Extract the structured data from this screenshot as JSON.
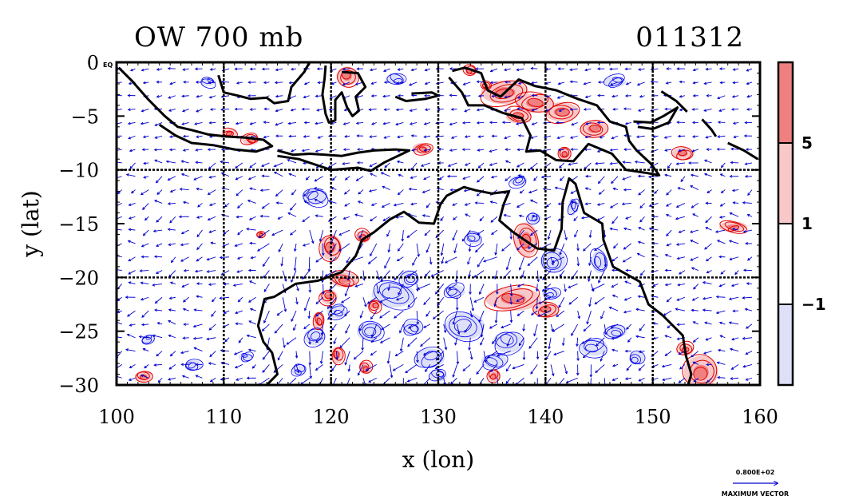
{
  "chart_data": {
    "type": "heatmap",
    "title_left": "OW 700 mb",
    "title_right": "011312",
    "xlabel": "x (lon)",
    "ylabel": "y (lat)",
    "xlim": [
      100,
      160
    ],
    "ylim": [
      -30,
      0
    ],
    "x_ticks": [
      100,
      110,
      120,
      130,
      140,
      150,
      160
    ],
    "x_tick_labels": [
      "100",
      "110",
      "120",
      "130",
      "140",
      "150",
      "160"
    ],
    "y_ticks": [
      0,
      -5,
      -10,
      -15,
      -20,
      -25,
      -30
    ],
    "y_tick_labels": [
      "0",
      "−5",
      "−10",
      "−15",
      "−20",
      "−25",
      "−30"
    ],
    "y_zero_suffix": "EQ",
    "grid": true,
    "grid_lines_x": [
      110,
      120,
      130,
      140,
      150
    ],
    "grid_lines_y": [
      -10,
      -20
    ],
    "colorbar": {
      "levels": [
        -1,
        1,
        5
      ],
      "level_labels": [
        "−1",
        "1",
        "5"
      ],
      "colors": [
        "#dde0f6",
        "#ffffff",
        "#f8c8c8",
        "#f08080"
      ]
    },
    "contour_colors": {
      "positive": "#e00000",
      "negative": "#0000ee"
    },
    "vector_color": "#0000cc",
    "coast_color": "#000000",
    "vector_key": {
      "value_label": "0.800E+02",
      "caption": "MAXIMUM VECTOR"
    },
    "coastlines": [
      {
        "name": "sumatra-java",
        "points": [
          [
            100.2,
            -0.5
          ],
          [
            101.5,
            -1.8
          ],
          [
            103,
            -3.5
          ],
          [
            104.5,
            -5
          ],
          [
            105.7,
            -6
          ],
          [
            107,
            -6.3
          ],
          [
            108.5,
            -6.7
          ],
          [
            110.2,
            -6.9
          ],
          [
            112,
            -7
          ],
          [
            113.7,
            -7.2
          ],
          [
            114.5,
            -7.8
          ],
          [
            113,
            -8.3
          ],
          [
            111,
            -8.1
          ],
          [
            109,
            -7.7
          ],
          [
            107,
            -7.5
          ],
          [
            105.5,
            -6.8
          ],
          [
            104,
            -5.8
          ]
        ]
      },
      {
        "name": "lesser-sunda",
        "points": [
          [
            115,
            -8.2
          ],
          [
            116.5,
            -8.6
          ],
          [
            118,
            -8.5
          ],
          [
            119.5,
            -8.6
          ],
          [
            121,
            -8.7
          ],
          [
            122.5,
            -8.4
          ],
          [
            124,
            -8.2
          ],
          [
            126,
            -8.1
          ],
          [
            127.3,
            -8.2
          ],
          [
            125,
            -9.3
          ],
          [
            123.7,
            -10.1
          ],
          [
            122.5,
            -9.8
          ],
          [
            120,
            -10
          ],
          [
            117,
            -9
          ],
          [
            115,
            -8.7
          ]
        ]
      },
      {
        "name": "borneo",
        "points": [
          [
            109.5,
            -1.2
          ],
          [
            110,
            -2.8
          ],
          [
            111.3,
            -3.1
          ],
          [
            112.5,
            -3.4
          ],
          [
            114,
            -3.3
          ],
          [
            114.7,
            -3.8
          ],
          [
            116,
            -3.6
          ],
          [
            116.3,
            -2.3
          ],
          [
            117.5,
            -0.9
          ],
          [
            118,
            0
          ]
        ]
      },
      {
        "name": "sulawesi",
        "points": [
          [
            119.5,
            -0.3
          ],
          [
            119.4,
            -1.5
          ],
          [
            119.2,
            -3
          ],
          [
            119.5,
            -4.8
          ],
          [
            119.8,
            -5.6
          ],
          [
            120.4,
            -5.4
          ],
          [
            120.4,
            -3.5
          ],
          [
            121,
            -2.8
          ],
          [
            121.5,
            -4.2
          ],
          [
            122,
            -5
          ],
          [
            122.6,
            -4.5
          ],
          [
            122.3,
            -3.2
          ],
          [
            123.2,
            -2.3
          ],
          [
            122.5,
            -1
          ],
          [
            121,
            -0.9
          ]
        ]
      },
      {
        "name": "small-islands-east",
        "points": [
          [
            126,
            -3.2
          ],
          [
            127,
            -3.6
          ],
          [
            128.8,
            -3.4
          ],
          [
            130,
            -3.1
          ],
          [
            129.4,
            -2.8
          ],
          [
            127.5,
            -2.9
          ]
        ]
      },
      {
        "name": "new-guinea",
        "points": [
          [
            131.3,
            -0.8
          ],
          [
            132.5,
            -0.5
          ],
          [
            134,
            -1
          ],
          [
            134.6,
            -2.6
          ],
          [
            135.8,
            -3.2
          ],
          [
            137.5,
            -1.6
          ],
          [
            139,
            -2.2
          ],
          [
            141,
            -2.6
          ],
          [
            143,
            -3.4
          ],
          [
            144.8,
            -4
          ],
          [
            146,
            -5.5
          ],
          [
            147.5,
            -6
          ],
          [
            147.8,
            -7.3
          ],
          [
            148.5,
            -8.2
          ],
          [
            149.8,
            -9.4
          ],
          [
            150.6,
            -10.5
          ],
          [
            149.5,
            -10.3
          ],
          [
            147.5,
            -10
          ],
          [
            146.2,
            -8.5
          ],
          [
            144,
            -7.6
          ],
          [
            142.6,
            -9.2
          ],
          [
            141,
            -9.1
          ],
          [
            139.5,
            -8.2
          ],
          [
            138.2,
            -8.3
          ],
          [
            138.6,
            -6.8
          ],
          [
            137.8,
            -5.2
          ],
          [
            136,
            -4.7
          ],
          [
            134.3,
            -4
          ],
          [
            132.8,
            -4
          ],
          [
            132.2,
            -2.8
          ],
          [
            131,
            -1.4
          ]
        ]
      },
      {
        "name": "new-britain",
        "points": [
          [
            148.2,
            -5.5
          ],
          [
            149.8,
            -5.6
          ],
          [
            151,
            -5
          ],
          [
            152.3,
            -4.2
          ],
          [
            151.5,
            -5.6
          ],
          [
            150,
            -6.2
          ],
          [
            148.6,
            -6
          ]
        ]
      },
      {
        "name": "new-ireland",
        "points": [
          [
            150.8,
            -2.7
          ],
          [
            152.2,
            -3.6
          ],
          [
            153.2,
            -4.6
          ]
        ]
      },
      {
        "name": "bougainville",
        "points": [
          [
            154.6,
            -5.3
          ],
          [
            155.5,
            -6.3
          ],
          [
            155.9,
            -6.9
          ]
        ]
      },
      {
        "name": "solomons",
        "points": [
          [
            157,
            -7.5
          ],
          [
            158.5,
            -8.2
          ],
          [
            159.8,
            -9
          ]
        ]
      },
      {
        "name": "australia-north-west",
        "points": [
          [
            114,
            -30
          ],
          [
            115,
            -29
          ],
          [
            114.5,
            -27
          ],
          [
            113.7,
            -26
          ],
          [
            113.2,
            -24.5
          ],
          [
            113.8,
            -22
          ],
          [
            114.7,
            -21.8
          ],
          [
            116.7,
            -20.6
          ],
          [
            118.8,
            -20.3
          ],
          [
            121,
            -19.5
          ],
          [
            122.3,
            -18
          ],
          [
            122.9,
            -16.5
          ],
          [
            124,
            -15.8
          ],
          [
            125.5,
            -14.6
          ],
          [
            126.8,
            -13.9
          ],
          [
            128.2,
            -14.9
          ],
          [
            129.6,
            -15
          ],
          [
            130.2,
            -13.2
          ],
          [
            130.8,
            -12.4
          ],
          [
            132.4,
            -11.6
          ],
          [
            133.5,
            -11.9
          ],
          [
            135,
            -12.2
          ],
          [
            136.6,
            -12
          ],
          [
            136.1,
            -13.2
          ],
          [
            135.7,
            -14.7
          ],
          [
            137,
            -15.8
          ],
          [
            139.2,
            -17.3
          ],
          [
            140.8,
            -17.5
          ],
          [
            141.5,
            -15.5
          ],
          [
            141.6,
            -13
          ],
          [
            142.2,
            -10.8
          ],
          [
            142.8,
            -11.3
          ],
          [
            143.6,
            -14
          ],
          [
            145.3,
            -15
          ],
          [
            145.4,
            -16.5
          ],
          [
            146.3,
            -19
          ],
          [
            148.8,
            -20.4
          ],
          [
            149.6,
            -22.5
          ],
          [
            150.9,
            -23.5
          ],
          [
            152.8,
            -25.4
          ],
          [
            153.1,
            -27.3
          ],
          [
            153.6,
            -29
          ],
          [
            153.3,
            -30
          ]
        ]
      }
    ],
    "positive_blobs": [
      [
        136.2,
        -2.8,
        2.2,
        1.1
      ],
      [
        139,
        -3.8,
        1.8,
        0.9
      ],
      [
        141.5,
        -4.6,
        1.6,
        0.9
      ],
      [
        144.5,
        -6.2,
        1.3,
        0.8
      ],
      [
        137.5,
        -5,
        1.2,
        0.7
      ],
      [
        121.5,
        -1.3,
        1.0,
        0.9
      ],
      [
        121.2,
        -20.2,
        1.3,
        0.7
      ],
      [
        119.8,
        -21.8,
        0.8,
        0.7
      ],
      [
        120,
        -17.2,
        1.0,
        1.2
      ],
      [
        123,
        -16.2,
        0.7,
        0.6
      ],
      [
        138.2,
        -16.5,
        1.1,
        1.6
      ],
      [
        137,
        -22,
        2.6,
        1.1
      ],
      [
        140,
        -23,
        1.2,
        0.7
      ],
      [
        154.5,
        -28.8,
        1.6,
        1.5
      ],
      [
        153,
        -26.7,
        0.8,
        0.6
      ],
      [
        120.6,
        -27.2,
        0.6,
        0.8
      ],
      [
        102.5,
        -29.2,
        0.8,
        0.5
      ],
      [
        118.8,
        -24,
        0.5,
        0.8
      ],
      [
        123.2,
        -28.4,
        0.6,
        0.6
      ],
      [
        152.8,
        -8.5,
        1.0,
        0.6
      ],
      [
        157.5,
        -15.3,
        1.3,
        0.5
      ],
      [
        124,
        -22.6,
        0.6,
        0.6
      ],
      [
        135.2,
        -29.1,
        0.6,
        0.6
      ],
      [
        141.8,
        -8.5,
        0.6,
        0.6
      ],
      [
        112.5,
        -7.2,
        0.8,
        0.5
      ],
      [
        128.5,
        -8,
        0.9,
        0.5
      ],
      [
        110.5,
        -6.6,
        0.7,
        0.4
      ],
      [
        133,
        -0.8,
        0.6,
        0.5
      ],
      [
        134.5,
        -2.2,
        0.5,
        0.4
      ],
      [
        113.5,
        -16,
        0.4,
        0.3
      ]
    ],
    "negative_blobs": [
      [
        125.8,
        -21.6,
        2.0,
        1.2
      ],
      [
        132.5,
        -24.5,
        1.8,
        1.3
      ],
      [
        136.5,
        -26,
        1.4,
        1.0
      ],
      [
        123.6,
        -25,
        1.2,
        0.9
      ],
      [
        129.2,
        -27.5,
        1.4,
        0.9
      ],
      [
        144.5,
        -26.5,
        1.3,
        0.8
      ],
      [
        146.6,
        -25,
        1.0,
        0.6
      ],
      [
        140.7,
        -18.5,
        1.2,
        1.1
      ],
      [
        135.2,
        -27.8,
        1.2,
        0.7
      ],
      [
        127.3,
        -20,
        0.9,
        0.7
      ],
      [
        118.5,
        -25.5,
        1.0,
        0.8
      ],
      [
        133.3,
        -16.3,
        0.8,
        0.6
      ],
      [
        118.5,
        -12.5,
        1.2,
        0.8
      ],
      [
        145,
        -18.5,
        0.7,
        1.1
      ],
      [
        139,
        -14.5,
        0.6,
        0.5
      ],
      [
        107.2,
        -28.2,
        0.8,
        0.5
      ],
      [
        103,
        -25.8,
        0.6,
        0.4
      ],
      [
        148.5,
        -27.5,
        0.7,
        0.6
      ],
      [
        127.6,
        -24.7,
        0.9,
        0.7
      ],
      [
        131.5,
        -21.3,
        1.0,
        0.6
      ],
      [
        120.5,
        -23.2,
        0.9,
        0.6
      ],
      [
        146.5,
        -1.8,
        1.0,
        0.5
      ],
      [
        126,
        -1.6,
        0.9,
        0.5
      ],
      [
        137.5,
        -11,
        0.8,
        0.5
      ],
      [
        108.5,
        -1.8,
        0.7,
        0.4
      ],
      [
        140.5,
        -21.5,
        0.8,
        0.5
      ],
      [
        142.5,
        -13.5,
        0.4,
        0.8
      ],
      [
        130,
        -29.2,
        0.8,
        0.5
      ],
      [
        117,
        -28.6,
        0.7,
        0.5
      ],
      [
        112,
        -27.4,
        0.6,
        0.4
      ]
    ]
  }
}
